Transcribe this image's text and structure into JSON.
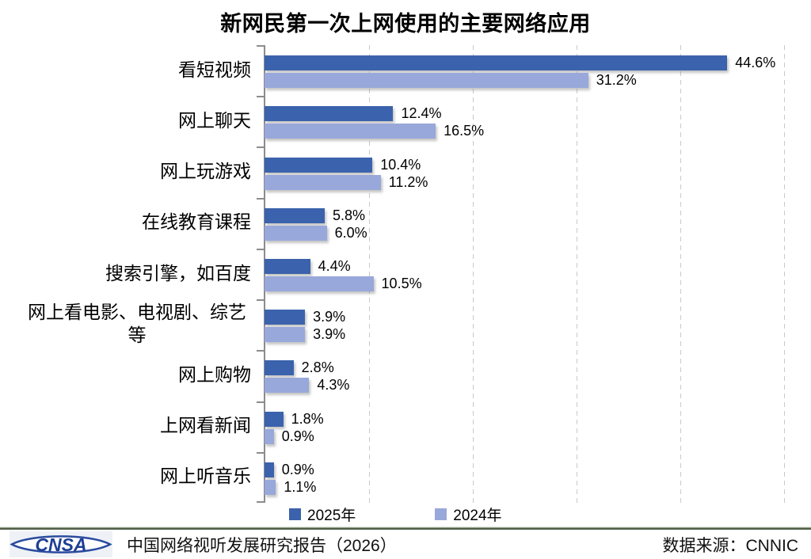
{
  "title": "新网民第一次上网使用的主要网络应用",
  "chart_data": {
    "type": "bar",
    "orientation": "horizontal",
    "title": "新网民第一次上网使用的主要网络应用",
    "categories": [
      "看短视频",
      "网上聊天",
      "网上玩游戏",
      "在线教育课程",
      "搜索引擎，如百度",
      "网上看电影、电视剧、综艺等",
      "网上购物",
      "上网看新闻",
      "网上听音乐"
    ],
    "series": [
      {
        "name": "2025年",
        "color": "#3b62ac",
        "values": [
          44.6,
          12.4,
          10.4,
          5.8,
          4.4,
          3.9,
          2.8,
          1.8,
          0.9
        ]
      },
      {
        "name": "2024年",
        "color": "#99a8da",
        "values": [
          31.2,
          16.5,
          11.2,
          6.0,
          10.5,
          3.9,
          4.3,
          0.9,
          1.1
        ]
      }
    ],
    "value_suffix": "%",
    "data_labels": "outside-end",
    "xlim": [
      0,
      52
    ],
    "gridline_values": [
      10,
      20,
      30,
      40,
      50
    ],
    "grid": "dashed-vertical",
    "legend_position": "bottom",
    "axis_ticks": "category-boundaries"
  },
  "legend": {
    "items": [
      {
        "label": "2025年",
        "color": "#3b62ac"
      },
      {
        "label": "2024年",
        "color": "#99a8da"
      }
    ]
  },
  "footer": {
    "logo": "CNSA",
    "report_title": "中国网络视听发展研究报告（2026）",
    "data_source": "数据来源：CNNIC"
  },
  "colors": {
    "series_2025": "#3b62ac",
    "series_2024": "#99a8da",
    "gridline": "#c9c9c9",
    "axis": "#8c8c8c",
    "footer_line": "#515e49",
    "logo_blue": "#1d3f94"
  }
}
